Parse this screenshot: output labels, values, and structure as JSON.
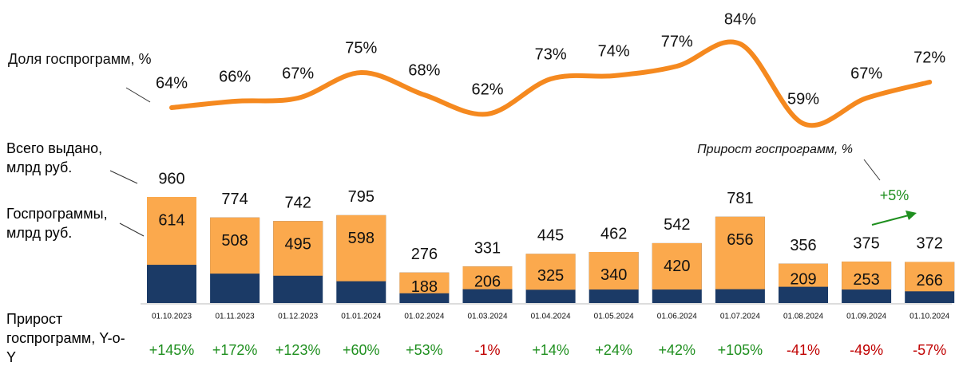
{
  "chart_data": {
    "type": "bar",
    "categories": [
      "01.10.2023",
      "01.11.2023",
      "01.12.2023",
      "01.01.2024",
      "01.02.2024",
      "01.03.2024",
      "01.04.2024",
      "01.05.2024",
      "01.06.2024",
      "01.07.2024",
      "01.08.2024",
      "01.09.2024",
      "01.10.2024"
    ],
    "labels": {
      "share": "Доля госпрограмм, %",
      "total": "Всего выдано, млрд руб.",
      "gov": "Госпрограммы, млрд руб.",
      "growth": "Прирост госпрограмм, Y-o-Y"
    },
    "annotation": {
      "text": "Прирост госпрограмм, %",
      "value": "+5%"
    },
    "share": {
      "color": "#f5891f",
      "values": [
        64,
        66,
        67,
        75,
        68,
        62,
        73,
        74,
        77,
        84,
        59,
        67,
        72
      ],
      "value_labels": [
        "64%",
        "66%",
        "67%",
        "75%",
        "68%",
        "62%",
        "73%",
        "74%",
        "77%",
        "84%",
        "59%",
        "67%",
        "72%"
      ]
    },
    "series": [
      {
        "name": "Всего выдано, млрд руб.",
        "color": "#1b3a66",
        "values": [
          960,
          774,
          742,
          795,
          276,
          331,
          445,
          462,
          542,
          781,
          356,
          375,
          372
        ]
      },
      {
        "name": "Госпрограммы, млрд руб.",
        "color": "#fba94d",
        "values": [
          614,
          508,
          495,
          598,
          188,
          206,
          325,
          340,
          420,
          656,
          209,
          253,
          266
        ]
      }
    ],
    "growth": {
      "values": [
        145,
        172,
        123,
        60,
        53,
        -1,
        14,
        24,
        42,
        105,
        -41,
        -49,
        -57
      ],
      "value_labels": [
        "+145%",
        "+172%",
        "+123%",
        "+60%",
        "+53%",
        "-1%",
        "+14%",
        "+24%",
        "+42%",
        "+105%",
        "-41%",
        "-49%",
        "-57%"
      ]
    }
  }
}
